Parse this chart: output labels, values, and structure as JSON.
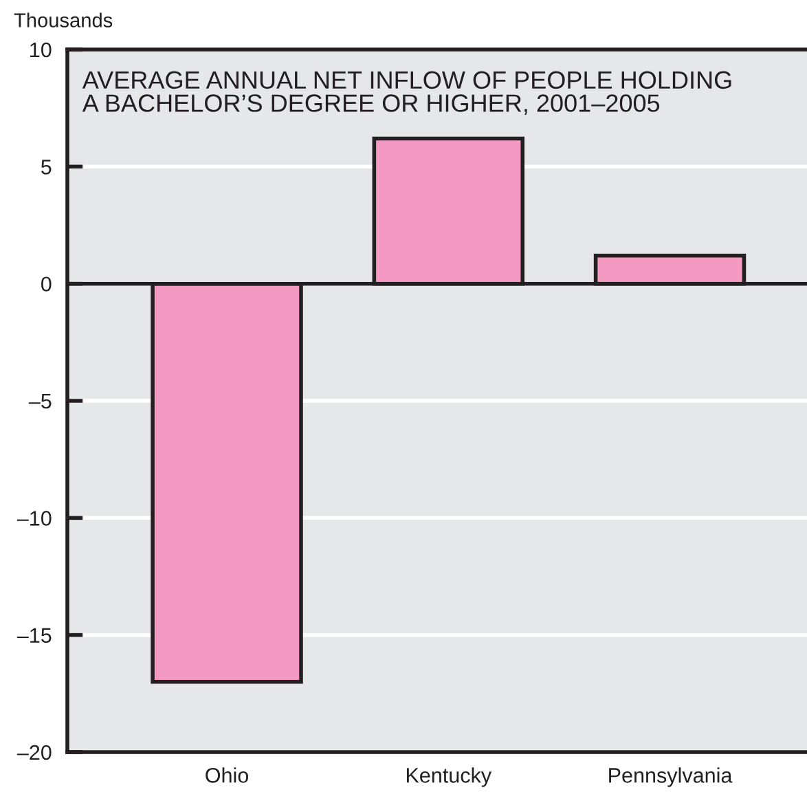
{
  "chart_data": {
    "type": "bar",
    "title": "AVERAGE ANNUAL NET INFLOW OF PEOPLE HOLDING\nA BACHELOR’S DEGREE OR HIGHER, 2001–2005",
    "ylabel": "Thousands",
    "categories": [
      "Ohio",
      "Kentucky",
      "Pennsylvania"
    ],
    "values": [
      -17,
      6.2,
      1.2
    ],
    "color": "#f49ac2",
    "ylim": [
      -20,
      10
    ],
    "yticks": [
      {
        "value": -20,
        "label": "–20"
      },
      {
        "value": -15,
        "label": "–15"
      },
      {
        "value": -10,
        "label": "–10"
      },
      {
        "value": -5,
        "label": "–5"
      },
      0,
      5,
      10
    ],
    "grid": "y",
    "ref_lines": [
      {
        "axis": "y",
        "value": 0,
        "label": null,
        "color": "#231f20"
      }
    ]
  }
}
